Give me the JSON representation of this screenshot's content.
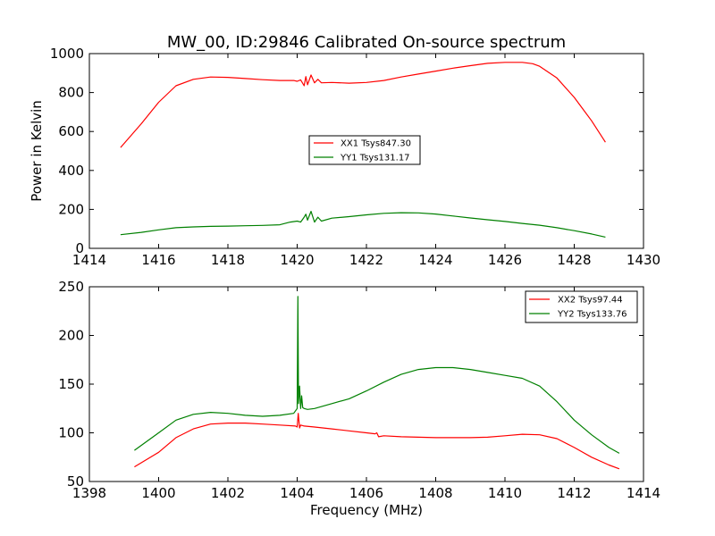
{
  "chart_data": [
    {
      "type": "line",
      "title": "MW_00, ID:29846 Calibrated On-source spectrum",
      "xlabel": "",
      "ylabel": "Power in Kelvin",
      "xlim": [
        1414,
        1430
      ],
      "ylim": [
        0,
        1000
      ],
      "xticks": [
        "1414",
        "1416",
        "1418",
        "1420",
        "1422",
        "1424",
        "1426",
        "1428",
        "1430"
      ],
      "yticks": [
        "0",
        "200",
        "400",
        "600",
        "800",
        "1000"
      ],
      "legend_position": "center",
      "grid": false,
      "series": [
        {
          "name": "XX1 Tsys847.30",
          "color": "#ff0000",
          "x": [
            1414.9,
            1415.5,
            1416.0,
            1416.5,
            1417.0,
            1417.5,
            1418.0,
            1418.5,
            1419.0,
            1419.5,
            1419.9,
            1420.0,
            1420.1,
            1420.2,
            1420.25,
            1420.3,
            1420.4,
            1420.5,
            1420.6,
            1420.7,
            1421.0,
            1421.5,
            1422.0,
            1422.5,
            1423.0,
            1423.5,
            1424.0,
            1424.5,
            1425.0,
            1425.5,
            1426.0,
            1426.5,
            1426.8,
            1427.0,
            1427.5,
            1428.0,
            1428.5,
            1428.9
          ],
          "y": [
            518,
            640,
            750,
            835,
            868,
            880,
            878,
            872,
            866,
            862,
            862,
            858,
            865,
            835,
            882,
            840,
            890,
            850,
            868,
            850,
            852,
            848,
            852,
            862,
            880,
            895,
            910,
            925,
            938,
            950,
            955,
            955,
            948,
            935,
            875,
            775,
            655,
            545
          ]
        },
        {
          "name": "YY1 Tsys131.17",
          "color": "#008000",
          "x": [
            1414.9,
            1415.5,
            1416.0,
            1416.5,
            1417.0,
            1417.5,
            1418.0,
            1418.5,
            1419.0,
            1419.5,
            1419.8,
            1420.0,
            1420.1,
            1420.2,
            1420.25,
            1420.3,
            1420.4,
            1420.5,
            1420.6,
            1420.7,
            1421.0,
            1421.5,
            1422.0,
            1422.5,
            1423.0,
            1423.5,
            1424.0,
            1424.5,
            1425.0,
            1425.5,
            1426.0,
            1426.5,
            1427.0,
            1427.5,
            1428.0,
            1428.5,
            1428.9
          ],
          "y": [
            70,
            82,
            95,
            106,
            110,
            113,
            114,
            116,
            118,
            121,
            135,
            140,
            135,
            160,
            175,
            145,
            190,
            135,
            160,
            140,
            155,
            163,
            172,
            180,
            183,
            182,
            176,
            166,
            156,
            147,
            138,
            128,
            119,
            106,
            91,
            74,
            58
          ]
        }
      ]
    },
    {
      "type": "line",
      "title": "",
      "xlabel": "Frequency (MHz)",
      "ylabel": "",
      "xlim": [
        1398,
        1414
      ],
      "ylim": [
        50,
        250
      ],
      "xticks": [
        "1398",
        "1400",
        "1402",
        "1404",
        "1406",
        "1408",
        "1410",
        "1412",
        "1414"
      ],
      "yticks": [
        "50",
        "100",
        "150",
        "200",
        "250"
      ],
      "legend_position": "top-right",
      "grid": false,
      "series": [
        {
          "name": "XX2 Tsys97.44",
          "color": "#ff0000",
          "x": [
            1399.3,
            1400.0,
            1400.5,
            1401.0,
            1401.5,
            1402.0,
            1402.5,
            1403.0,
            1403.5,
            1403.95,
            1404.0,
            1404.03,
            1404.07,
            1404.1,
            1404.2,
            1404.5,
            1405.0,
            1405.5,
            1406.0,
            1406.25,
            1406.3,
            1406.35,
            1406.5,
            1407.0,
            1407.5,
            1408.0,
            1408.5,
            1409.0,
            1409.5,
            1410.0,
            1410.5,
            1411.0,
            1411.5,
            1412.0,
            1412.5,
            1413.0,
            1413.3
          ],
          "y": [
            65,
            80,
            95,
            104,
            109,
            110,
            110,
            109,
            108,
            107,
            106,
            120,
            105,
            108,
            107,
            106,
            104,
            102,
            100,
            99,
            100,
            96,
            97,
            96,
            95.5,
            95,
            95,
            95,
            95.5,
            97,
            98.5,
            98,
            94,
            85,
            75,
            67,
            63
          ]
        },
        {
          "name": "YY2 Tsys133.76",
          "color": "#008000",
          "x": [
            1399.3,
            1400.0,
            1400.5,
            1401.0,
            1401.5,
            1402.0,
            1402.5,
            1403.0,
            1403.5,
            1403.9,
            1404.0,
            1404.02,
            1404.04,
            1404.07,
            1404.1,
            1404.13,
            1404.16,
            1404.2,
            1404.3,
            1404.5,
            1405.0,
            1405.5,
            1406.0,
            1406.5,
            1407.0,
            1407.5,
            1408.0,
            1408.5,
            1409.0,
            1409.5,
            1410.0,
            1410.5,
            1411.0,
            1411.5,
            1412.0,
            1412.5,
            1413.0,
            1413.3
          ],
          "y": [
            82,
            100,
            113,
            119,
            121,
            120,
            118,
            117,
            118,
            120,
            125,
            240,
            130,
            148,
            125,
            138,
            126,
            125,
            124,
            125,
            130,
            135,
            143,
            152,
            160,
            165,
            167,
            167,
            165,
            162,
            159,
            156,
            148,
            132,
            113,
            98,
            85,
            79
          ]
        }
      ]
    }
  ]
}
